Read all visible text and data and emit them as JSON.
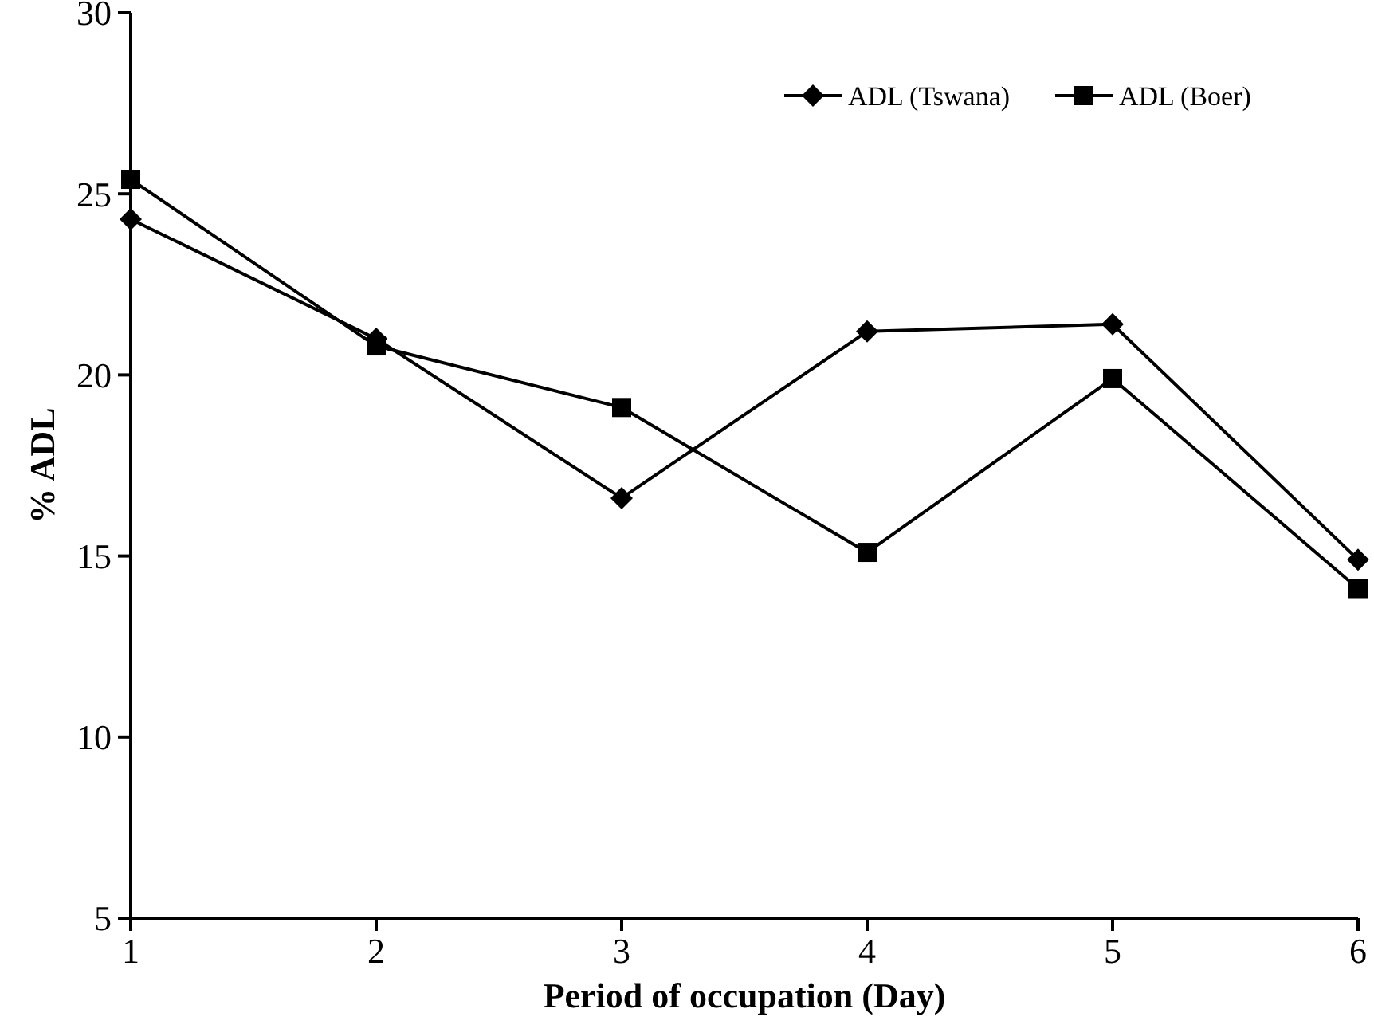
{
  "chart_data": {
    "type": "line",
    "xlabel": "Period of occupation (Day)",
    "ylabel": "% ADL",
    "x": [
      1,
      2,
      3,
      4,
      5,
      6
    ],
    "xlim": [
      1,
      6
    ],
    "xticks": [
      1,
      2,
      3,
      4,
      5,
      6
    ],
    "ylim": [
      5,
      30
    ],
    "yticks": [
      5,
      10,
      15,
      20,
      25,
      30
    ],
    "grid": false,
    "legend": "top right",
    "series": [
      {
        "name": "ADL (Tswana)",
        "color": "#000000",
        "marker": "diamond",
        "values": [
          24.3,
          21.0,
          16.6,
          21.2,
          21.4,
          14.9
        ]
      },
      {
        "name": "ADL (Boer)",
        "color": "#000000",
        "marker": "square",
        "values": [
          25.4,
          20.8,
          19.1,
          15.1,
          19.9,
          14.1
        ]
      }
    ]
  }
}
